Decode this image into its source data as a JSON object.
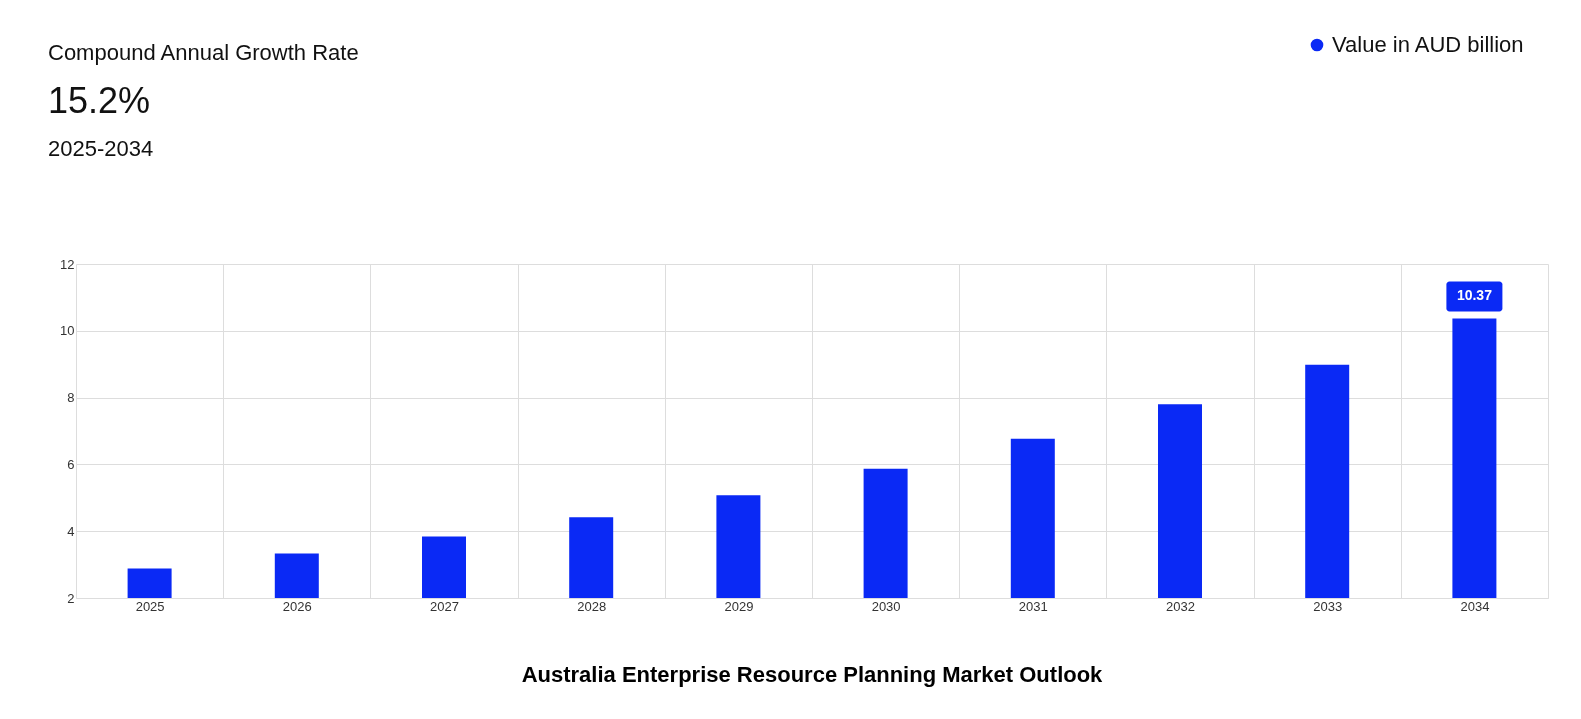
{
  "chart_data": {
    "type": "bar",
    "title": "Australia Enterprise Resource Planning Market Outlook",
    "annotations": [
      "Compound Annual Growth Rate",
      "15.2%",
      "2025-2034"
    ],
    "categories": [
      "2025",
      "2026",
      "2027",
      "2028",
      "2029",
      "2030",
      "2031",
      "2032",
      "2033",
      "2034"
    ],
    "series": [
      {
        "name": "Value in AUD billion",
        "color": "#0a29f5",
        "values": [
          2.88,
          3.33,
          3.84,
          4.42,
          5.08,
          5.87,
          6.77,
          7.8,
          8.98,
          10.37
        ],
        "value_labels": [
          null,
          null,
          null,
          null,
          null,
          null,
          null,
          null,
          null,
          "10.37"
        ]
      }
    ],
    "ylim": [
      2,
      12
    ],
    "yticks": [
      2,
      4,
      6,
      8,
      10,
      12
    ],
    "grid": true,
    "legend": "top right"
  }
}
